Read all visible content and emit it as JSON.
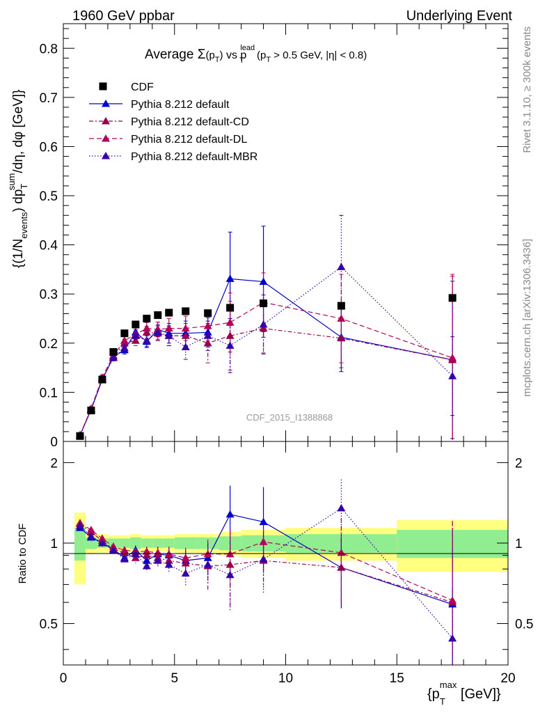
{
  "header": {
    "left": "1960 GeV ppbar",
    "right": "Underlying Event",
    "side_top": "Rivet 3.1.10, ≥ 300k events",
    "side_bottom": "mcplots.cern.ch [arXiv:1306.3436]",
    "analysis_id": "CDF_2015_I1388868"
  },
  "title": {
    "prefix": "Average ",
    "sigma": "Σ",
    "pt_paren": "(p",
    "pt_sub": "T",
    "pt_close": ")",
    "vs": " vs p",
    "lead_sup": "lead",
    "lead_sub": "T",
    "cut_open": " (p",
    "cut_sub": "T",
    "cut_rest": " > 0.5 GeV, |η| < 0.8)"
  },
  "ylabel_main": "{(1/N_events) dp_T^sum/dη, dφ [GeV]}",
  "ylabel_ratio": "Ratio to CDF",
  "xlabel": "{p_T^max [GeV]}",
  "colors": {
    "data": "#000000",
    "default": "#0000cc",
    "cd": "#99004c",
    "dl": "#b30059",
    "mbr": "#3300aa",
    "band_stat": "#90ee90",
    "band_tot": "#ffff80"
  },
  "chart_data": {
    "type": "scatter",
    "x_range": [
      0,
      20
    ],
    "main_ylim": [
      0,
      0.85
    ],
    "ratio_ylim": [
      0.35,
      2.4
    ],
    "ratio_scale": "log",
    "main_yticks": [
      "0",
      "0.1",
      "0.2",
      "0.3",
      "0.4",
      "0.5",
      "0.6",
      "0.7",
      "0.8"
    ],
    "ratio_yticks": [
      "0.5",
      "1",
      "2"
    ],
    "xticks": [
      "0",
      "5",
      "10",
      "15",
      "20"
    ],
    "legend_position": "top-left",
    "data": {
      "name": "CDF",
      "x": [
        0.75,
        1.25,
        1.75,
        2.25,
        2.75,
        3.25,
        3.75,
        4.25,
        4.75,
        5.5,
        6.5,
        7.5,
        9.0,
        12.5,
        17.5
      ],
      "y": [
        0.011,
        0.063,
        0.126,
        0.182,
        0.22,
        0.238,
        0.25,
        0.257,
        0.262,
        0.265,
        0.261,
        0.272,
        0.281,
        0.276,
        0.292
      ],
      "xlow": [
        0.5,
        1.0,
        1.5,
        2.0,
        2.5,
        3.0,
        3.5,
        4.0,
        4.5,
        5.0,
        6.0,
        7.0,
        8.0,
        10.0,
        15.0
      ],
      "xhigh": [
        1.0,
        1.5,
        2.0,
        2.5,
        3.0,
        3.5,
        4.0,
        4.5,
        5.0,
        6.0,
        7.0,
        8.0,
        10.0,
        15.0,
        20.0
      ],
      "band_stat": [
        0.14,
        0.05,
        0.04,
        0.04,
        0.04,
        0.05,
        0.04,
        0.04,
        0.04,
        0.05,
        0.05,
        0.06,
        0.07,
        0.08,
        0.12
      ],
      "band_tot": [
        0.3,
        0.09,
        0.08,
        0.07,
        0.07,
        0.08,
        0.07,
        0.07,
        0.07,
        0.08,
        0.08,
        0.1,
        0.12,
        0.14,
        0.22
      ]
    },
    "series": [
      {
        "name": "Pythia 8.212 default",
        "key": "default",
        "dash": "",
        "x": [
          0.75,
          1.25,
          1.75,
          2.25,
          2.75,
          3.25,
          3.75,
          4.25,
          4.75,
          5.5,
          6.5,
          7.5,
          9.0,
          12.5,
          17.5
        ],
        "y": [
          0.0125,
          0.065,
          0.126,
          0.172,
          0.186,
          0.222,
          0.203,
          0.228,
          0.22,
          0.22,
          0.222,
          0.331,
          0.325,
          0.212,
          0.166
        ],
        "err": [
          0.002,
          0.004,
          0.006,
          0.006,
          0.008,
          0.01,
          0.012,
          0.015,
          0.02,
          0.025,
          0.03,
          0.095,
          0.113,
          0.07,
          0.16
        ],
        "ratio": [
          1.14,
          1.05,
          1.0,
          0.95,
          0.88,
          0.94,
          0.86,
          0.91,
          0.9,
          0.86,
          0.88,
          1.28,
          1.2,
          0.81,
          0.59
        ],
        "ratio_err": [
          0.02,
          0.02,
          0.03,
          0.03,
          0.03,
          0.04,
          0.04,
          0.05,
          0.06,
          0.08,
          0.12,
          0.36,
          0.42,
          0.24,
          0.55
        ]
      },
      {
        "name": "Pythia 8.212 default-CD",
        "key": "cd",
        "dash": "6,3,2,3",
        "x": [
          0.75,
          1.25,
          1.75,
          2.25,
          2.75,
          3.25,
          3.75,
          4.25,
          4.75,
          5.5,
          6.5,
          7.5,
          9.0,
          12.5,
          17.5
        ],
        "y": [
          0.0128,
          0.066,
          0.128,
          0.17,
          0.2,
          0.205,
          0.222,
          0.22,
          0.215,
          0.215,
          0.2,
          0.215,
          0.23,
          0.21,
          0.166
        ],
        "err": [
          0.002,
          0.004,
          0.006,
          0.006,
          0.008,
          0.01,
          0.012,
          0.015,
          0.02,
          0.025,
          0.04,
          0.07,
          0.05,
          0.06,
          0.17
        ],
        "ratio": [
          1.18,
          1.1,
          1.02,
          0.95,
          0.92,
          0.88,
          0.9,
          0.88,
          0.86,
          0.84,
          0.82,
          0.83,
          0.86,
          0.81,
          0.6
        ],
        "ratio_err": [
          0.02,
          0.02,
          0.03,
          0.03,
          0.03,
          0.04,
          0.04,
          0.05,
          0.06,
          0.08,
          0.15,
          0.25,
          0.18,
          0.22,
          0.6
        ]
      },
      {
        "name": "Pythia 8.212 default-DL",
        "key": "dl",
        "dash": "7,4",
        "x": [
          0.75,
          1.25,
          1.75,
          2.25,
          2.75,
          3.25,
          3.75,
          4.25,
          4.75,
          5.5,
          6.5,
          7.5,
          9.0,
          12.5,
          17.5
        ],
        "y": [
          0.013,
          0.067,
          0.13,
          0.175,
          0.205,
          0.218,
          0.23,
          0.228,
          0.23,
          0.23,
          0.235,
          0.242,
          0.283,
          0.25,
          0.17
        ],
        "err": [
          0.002,
          0.004,
          0.006,
          0.006,
          0.008,
          0.01,
          0.012,
          0.015,
          0.02,
          0.025,
          0.03,
          0.06,
          0.06,
          0.09,
          0.17
        ],
        "ratio": [
          1.19,
          1.12,
          1.04,
          0.97,
          0.94,
          0.93,
          0.93,
          0.92,
          0.91,
          0.88,
          0.91,
          0.91,
          1.01,
          0.92,
          0.61
        ],
        "ratio_err": [
          0.02,
          0.02,
          0.03,
          0.03,
          0.03,
          0.04,
          0.04,
          0.05,
          0.06,
          0.08,
          0.12,
          0.22,
          0.2,
          0.32,
          0.6
        ]
      },
      {
        "name": "Pythia 8.212 default-MBR",
        "key": "mbr",
        "dash": "1.5,2.5",
        "x": [
          0.75,
          1.25,
          1.75,
          2.25,
          2.75,
          3.25,
          3.75,
          4.25,
          4.75,
          5.5,
          6.5,
          7.5,
          9.0,
          12.5,
          17.5
        ],
        "y": [
          0.0125,
          0.064,
          0.125,
          0.17,
          0.19,
          0.215,
          0.205,
          0.222,
          0.215,
          0.192,
          0.215,
          0.195,
          0.238,
          0.355,
          0.133
        ],
        "err": [
          0.002,
          0.004,
          0.006,
          0.006,
          0.008,
          0.01,
          0.012,
          0.015,
          0.02,
          0.025,
          0.03,
          0.055,
          0.06,
          0.105,
          0.08
        ],
        "ratio": [
          1.16,
          1.06,
          1.0,
          0.94,
          0.87,
          0.91,
          0.82,
          0.86,
          0.83,
          0.77,
          0.83,
          0.76,
          0.87,
          1.35,
          0.44
        ],
        "ratio_err": [
          0.02,
          0.02,
          0.03,
          0.03,
          0.03,
          0.04,
          0.04,
          0.05,
          0.06,
          0.08,
          0.12,
          0.2,
          0.22,
          0.38,
          0.24
        ]
      }
    ]
  }
}
